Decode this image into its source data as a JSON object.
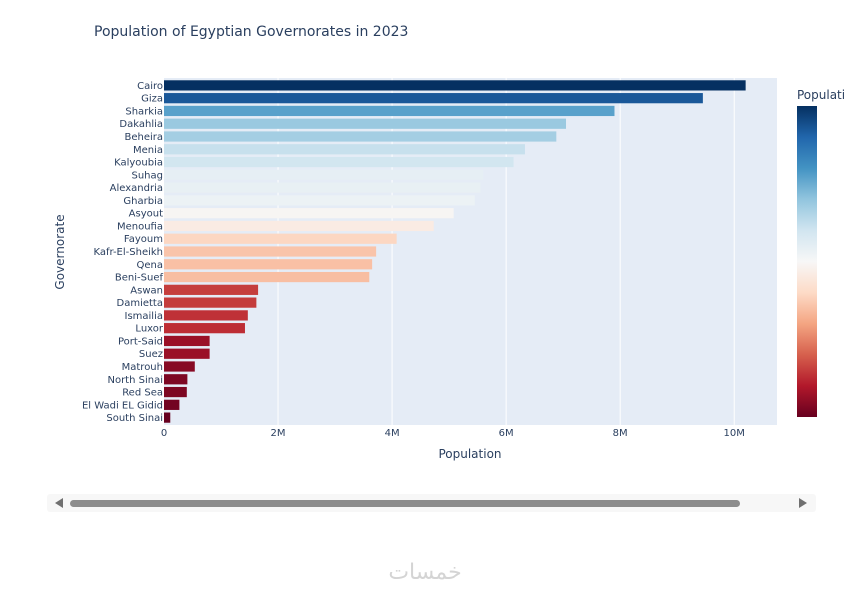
{
  "chart_data": {
    "type": "bar",
    "orientation": "horizontal",
    "title": "Population of Egyptian Governorates in 2023",
    "xlabel": "Population",
    "ylabel": "Governorate",
    "xlim": [
      0,
      10750000
    ],
    "xticks": [
      0,
      2000000,
      4000000,
      6000000,
      8000000,
      10000000
    ],
    "xtick_labels": [
      "0",
      "2M",
      "4M",
      "6M",
      "8M",
      "10M"
    ],
    "grid": true,
    "colorscale": "RdBu",
    "colorbar_title": "Population",
    "categories": [
      "Cairo",
      "Giza",
      "Sharkia",
      "Dakahlia",
      "Beheira",
      "Menia",
      "Kalyoubia",
      "Suhag",
      "Alexandria",
      "Gharbia",
      "Asyout",
      "Menoufia",
      "Fayoum",
      "Kafr-El-Sheikh",
      "Qena",
      "Beni-Suef",
      "Aswan",
      "Damietta",
      "Ismailia",
      "Luxor",
      "Port-Said",
      "Suez",
      "Matrouh",
      "North Sinai",
      "Red Sea",
      "El Wadi EL Gidid",
      "South Sinai"
    ],
    "values": [
      10200000,
      9450000,
      7900000,
      7050000,
      6880000,
      6330000,
      6130000,
      5600000,
      5550000,
      5450000,
      5080000,
      4730000,
      4080000,
      3720000,
      3650000,
      3600000,
      1650000,
      1620000,
      1470000,
      1420000,
      800000,
      800000,
      540000,
      410000,
      400000,
      270000,
      110000
    ]
  },
  "scrollbar": {
    "label": "horizontal-scrollbar"
  },
  "watermark": {
    "text": "خمسات"
  }
}
